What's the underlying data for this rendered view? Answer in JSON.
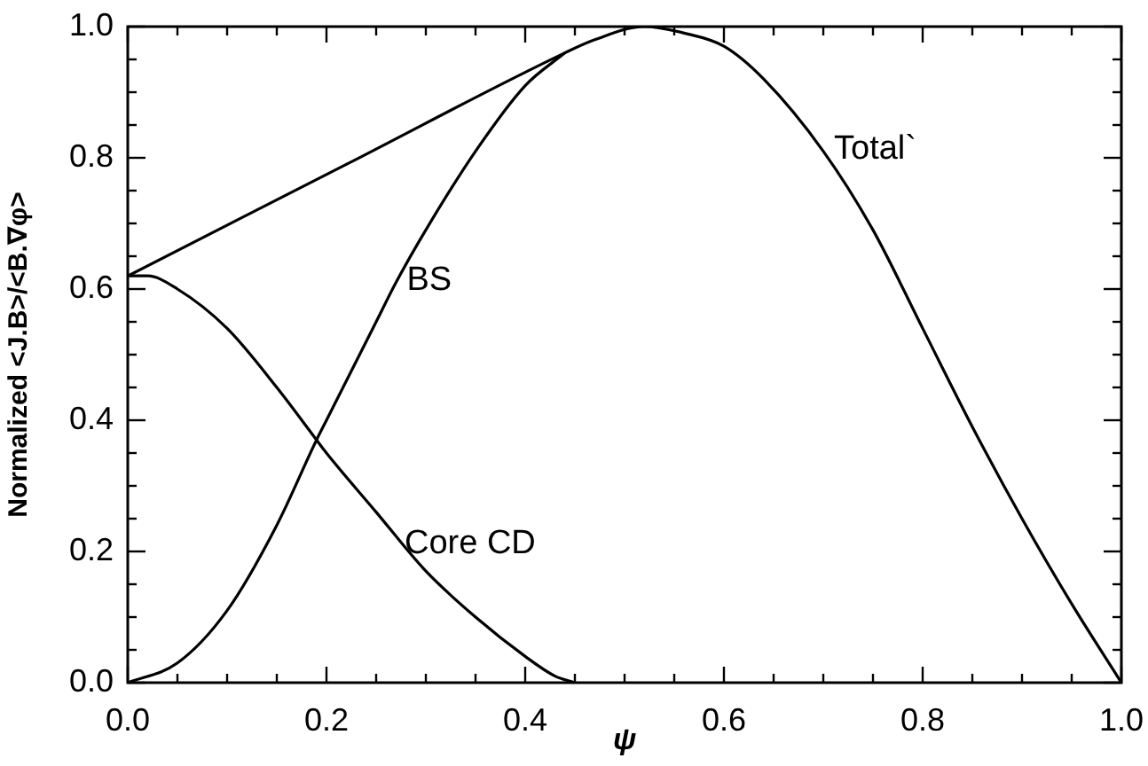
{
  "chart_data": {
    "type": "line",
    "xlabel": "ψ",
    "ylabel": "Normalized <J.B>/<B.∇φ>",
    "xlim": [
      0,
      1.0
    ],
    "ylim": [
      0,
      1.0
    ],
    "xticks": [
      {
        "value": 0,
        "label": "0.0"
      },
      {
        "value": 0.05,
        "label": null
      },
      {
        "value": 0.1,
        "label": null
      },
      {
        "value": 0.15,
        "label": null
      },
      {
        "value": 0.2,
        "label": "0.2"
      },
      {
        "value": 0.25,
        "label": null
      },
      {
        "value": 0.3,
        "label": null
      },
      {
        "value": 0.35,
        "label": null
      },
      {
        "value": 0.4,
        "label": "0.4"
      },
      {
        "value": 0.45,
        "label": null
      },
      {
        "value": 0.5,
        "label": null
      },
      {
        "value": 0.55,
        "label": null
      },
      {
        "value": 0.6,
        "label": "0.6"
      },
      {
        "value": 0.65,
        "label": null
      },
      {
        "value": 0.7,
        "label": null
      },
      {
        "value": 0.75,
        "label": null
      },
      {
        "value": 0.8,
        "label": "0.8"
      },
      {
        "value": 0.85,
        "label": null
      },
      {
        "value": 0.9,
        "label": null
      },
      {
        "value": 0.95,
        "label": null
      },
      {
        "value": 1.0,
        "label": "1.0"
      }
    ],
    "yticks": [
      {
        "value": 0,
        "label": "0.0"
      },
      {
        "value": 0.05,
        "label": null
      },
      {
        "value": 0.1,
        "label": null
      },
      {
        "value": 0.15,
        "label": null
      },
      {
        "value": 0.2,
        "label": "0.2"
      },
      {
        "value": 0.25,
        "label": null
      },
      {
        "value": 0.3,
        "label": null
      },
      {
        "value": 0.35,
        "label": null
      },
      {
        "value": 0.4,
        "label": "0.4"
      },
      {
        "value": 0.45,
        "label": null
      },
      {
        "value": 0.5,
        "label": null
      },
      {
        "value": 0.55,
        "label": null
      },
      {
        "value": 0.6,
        "label": "0.6"
      },
      {
        "value": 0.65,
        "label": null
      },
      {
        "value": 0.7,
        "label": null
      },
      {
        "value": 0.75,
        "label": null
      },
      {
        "value": 0.8,
        "label": "0.8"
      },
      {
        "value": 0.85,
        "label": null
      },
      {
        "value": 0.9,
        "label": null
      },
      {
        "value": 0.95,
        "label": null
      },
      {
        "value": 1.0,
        "label": "1.0"
      }
    ],
    "series": [
      {
        "name": "Core CD",
        "color": "#000000",
        "x": [
          0,
          0.02,
          0.05,
          0.1,
          0.15,
          0.19,
          0.2,
          0.25,
          0.3,
          0.35,
          0.4,
          0.43,
          0.45
        ],
        "values": [
          0.62,
          0.62,
          0.6,
          0.54,
          0.45,
          0.37,
          0.35,
          0.26,
          0.17,
          0.1,
          0.04,
          0.01,
          0
        ]
      },
      {
        "name": "BS",
        "color": "#000000",
        "x": [
          0,
          0.05,
          0.1,
          0.15,
          0.19,
          0.2,
          0.25,
          0.27,
          0.3,
          0.35,
          0.4,
          0.44
        ],
        "values": [
          0,
          0.03,
          0.11,
          0.24,
          0.37,
          0.4,
          0.55,
          0.61,
          0.69,
          0.81,
          0.91,
          0.96
        ]
      },
      {
        "name": "Total`",
        "color": "#000000",
        "x": [
          0,
          0.22,
          0.44,
          0.47,
          0.52,
          0.56,
          0.6,
          0.64,
          0.7,
          0.75,
          0.8,
          0.85,
          0.9,
          0.95,
          1.0
        ],
        "values": [
          0.62,
          0.79,
          0.96,
          0.98,
          1.0,
          0.99,
          0.97,
          0.92,
          0.81,
          0.69,
          0.54,
          0.39,
          0.25,
          0.12,
          0
        ]
      }
    ]
  }
}
